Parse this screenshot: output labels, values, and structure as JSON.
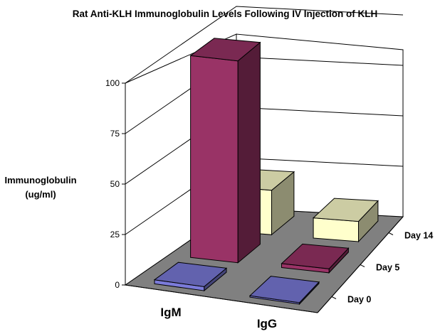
{
  "chart_data": {
    "type": "bar",
    "title": "Rat Anti-KLH Immunoglobulin Levels Following IV Injection of KLH",
    "ylabel": [
      "Immunoglobulin",
      "(ug/ml)"
    ],
    "xlabel": "",
    "categories": [
      "IgM",
      "IgG"
    ],
    "yticks": [
      "0",
      "25",
      "50",
      "75",
      "100"
    ],
    "ylim": [
      0,
      100
    ],
    "grid": true,
    "series": [
      {
        "name": "Day 0",
        "values": [
          2,
          0
        ],
        "color": "#7b7bd9"
      },
      {
        "name": "Day 5",
        "values": [
          100,
          2
        ],
        "color": "#993366"
      },
      {
        "name": "Day 14",
        "values": [
          22,
          10
        ],
        "color": "#ffffcc"
      }
    ],
    "colors": {
      "floor": "#808080",
      "wall": "#ffffff",
      "grid": "#000000"
    }
  }
}
